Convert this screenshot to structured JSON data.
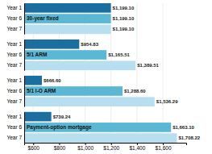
{
  "chart_data": {
    "type": "bar",
    "orientation": "horizontal",
    "categories": [
      "30-year fixed",
      "5/1 ARM",
      "5/1 I-O ARM",
      "Payment-option mortgage"
    ],
    "series": [
      {
        "name": "Year 1",
        "color": "#1a6fa0",
        "values": [
          1199.1,
          954.83,
          666.6,
          739.24
        ],
        "value_labels": [
          "$1,199.10",
          "$954.83",
          "$666.60",
          "$739.24"
        ]
      },
      {
        "name": "Year 6",
        "color": "#5bb8d4",
        "values": [
          1199.1,
          1165.51,
          1288.6,
          1663.1
        ],
        "value_labels": [
          "$1,199.10",
          "$1,165.51",
          "$1,288.60",
          "$1,663.10"
        ]
      },
      {
        "name": "Year 7",
        "color": "#b8dff0",
        "values": [
          1199.1,
          1389.51,
          1536.29,
          1708.22
        ],
        "value_labels": [
          "$1,199.10",
          "$1,389.51",
          "$1,536.29",
          "$1,708.22"
        ]
      }
    ],
    "xlim": [
      530,
      1780
    ],
    "xticks": [
      {
        "value": 600,
        "label": "$600"
      },
      {
        "value": 800,
        "label": "$800"
      },
      {
        "value": 1000,
        "label": "$1,000"
      },
      {
        "value": 1200,
        "label": "$1,200"
      },
      {
        "value": 1400,
        "label": "$1,400"
      },
      {
        "value": 1600,
        "label": "$1,600"
      }
    ],
    "grid": true,
    "data_labels": true
  }
}
